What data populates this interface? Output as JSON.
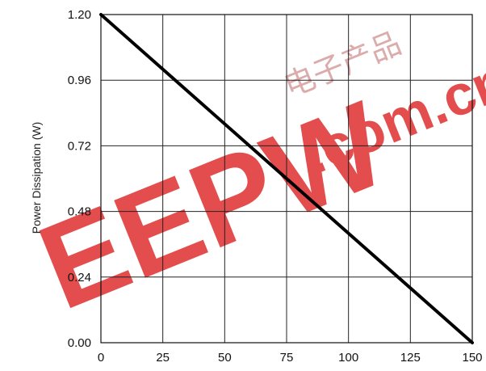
{
  "chart_data": {
    "type": "line",
    "title": "",
    "xlabel": "",
    "ylabel": "Power Dissipation (W)",
    "xlim": [
      0,
      150
    ],
    "ylim": [
      0,
      1.2
    ],
    "x_ticks": [
      0,
      25,
      50,
      75,
      100,
      125,
      150
    ],
    "x_tick_labels": [
      "0",
      "25",
      "50",
      "75",
      "100",
      "125",
      "150"
    ],
    "y_ticks": [
      0,
      0.24,
      0.48,
      0.72,
      0.96,
      1.2
    ],
    "y_tick_labels": [
      "0.00",
      "0.24",
      "0.48",
      "0.72",
      "0.96",
      "1.20"
    ],
    "grid": true,
    "series": [
      {
        "x": [
          0,
          150
        ],
        "y": [
          1.2,
          0
        ],
        "color": "#000000"
      }
    ]
  },
  "watermark": {
    "logo_text": "EEPW",
    "domain_text": ".com.cn",
    "chinese_text": "电子产品",
    "color": "#e23a3a"
  }
}
